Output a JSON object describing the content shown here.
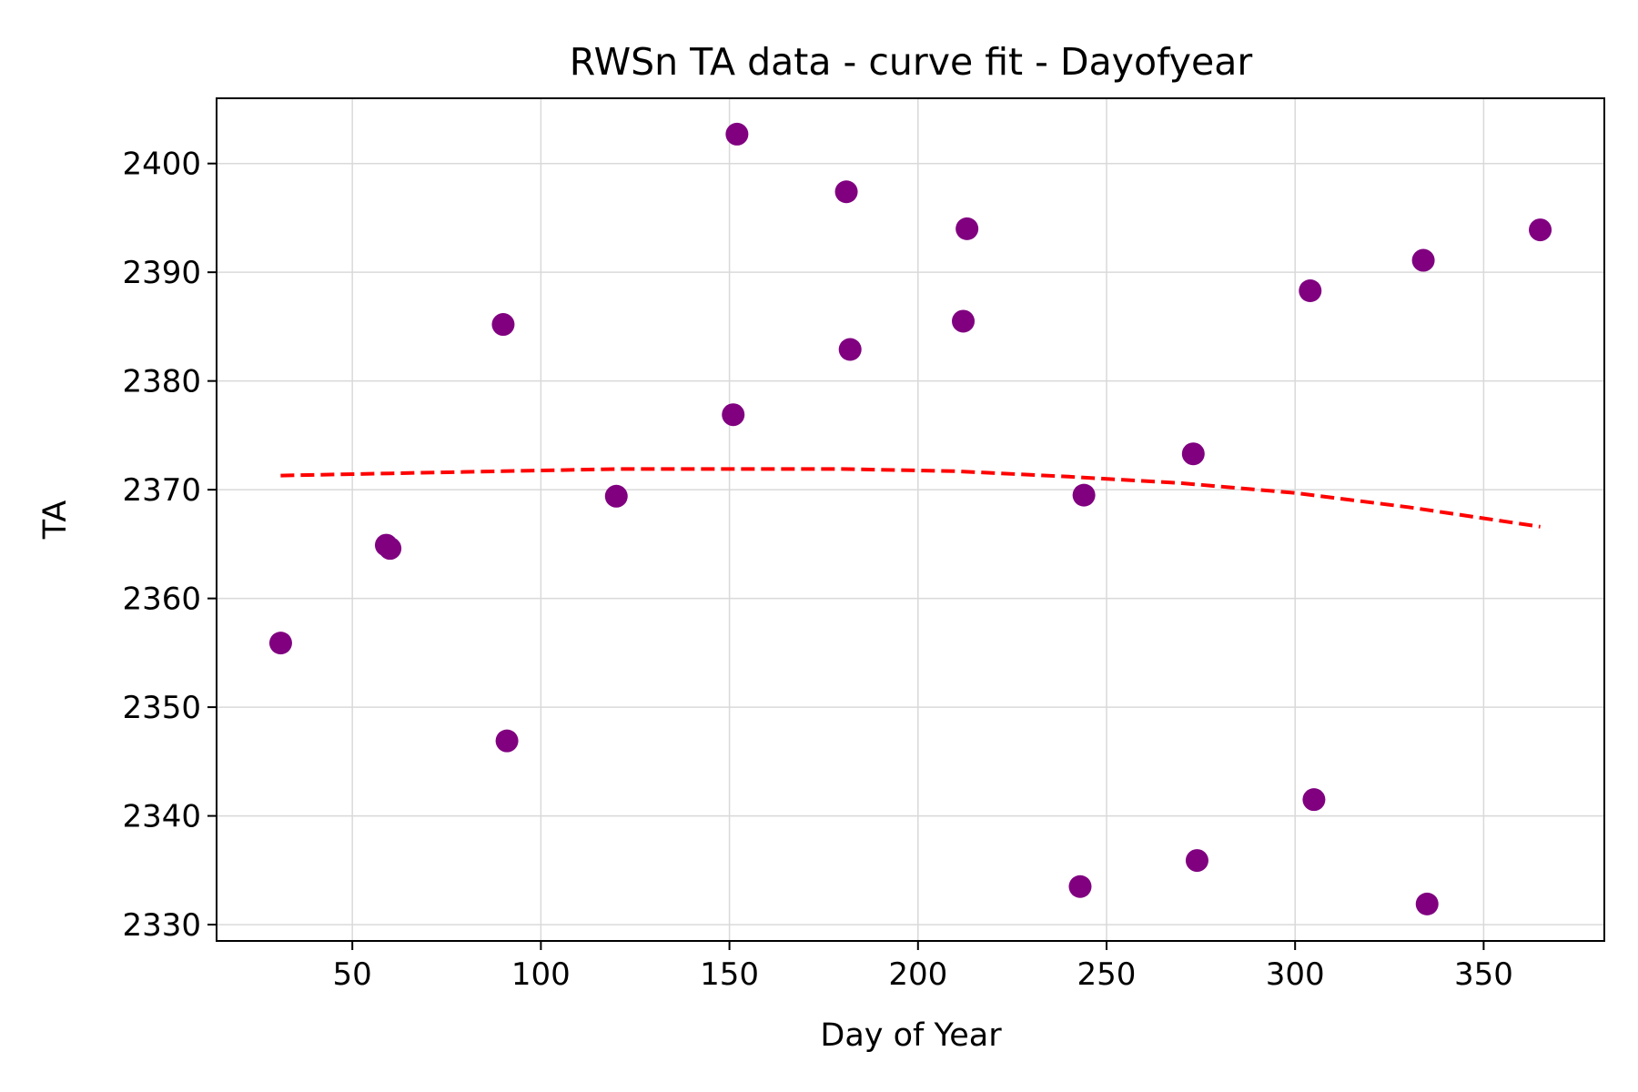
{
  "chart_data": {
    "type": "scatter",
    "title": "RWSn TA data - curve fit - Dayofyear",
    "xlabel": "Day of Year",
    "ylabel": "TA",
    "xlim": [
      14,
      382
    ],
    "ylim": [
      2328.5,
      2406
    ],
    "xticks": [
      50,
      100,
      150,
      200,
      250,
      300,
      350
    ],
    "yticks": [
      2330,
      2340,
      2350,
      2360,
      2370,
      2380,
      2390,
      2400
    ],
    "grid": true,
    "legend": "none",
    "colors": {
      "points": "#800080",
      "fit": "#ff0000"
    },
    "series": [
      {
        "type": "scatter",
        "x": [
          31,
          59,
          60,
          90,
          91,
          120,
          151,
          152,
          181,
          182,
          212,
          213,
          243,
          244,
          273,
          274,
          304,
          305,
          334,
          335,
          365
        ],
        "y": [
          2355.9,
          2364.9,
          2364.6,
          2385.2,
          2346.9,
          2369.4,
          2376.9,
          2402.7,
          2397.4,
          2382.9,
          2385.5,
          2394.0,
          2333.5,
          2369.5,
          2373.3,
          2335.9,
          2388.3,
          2341.5,
          2391.1,
          2331.9,
          2393.9
        ]
      },
      {
        "type": "line",
        "style": "dashed",
        "x": [
          31,
          60,
          90,
          120,
          150,
          180,
          210,
          240,
          270,
          300,
          330,
          365
        ],
        "y": [
          2371.3,
          2371.5,
          2371.7,
          2371.9,
          2371.9,
          2371.9,
          2371.7,
          2371.2,
          2370.6,
          2369.7,
          2368.4,
          2366.6
        ]
      }
    ]
  }
}
